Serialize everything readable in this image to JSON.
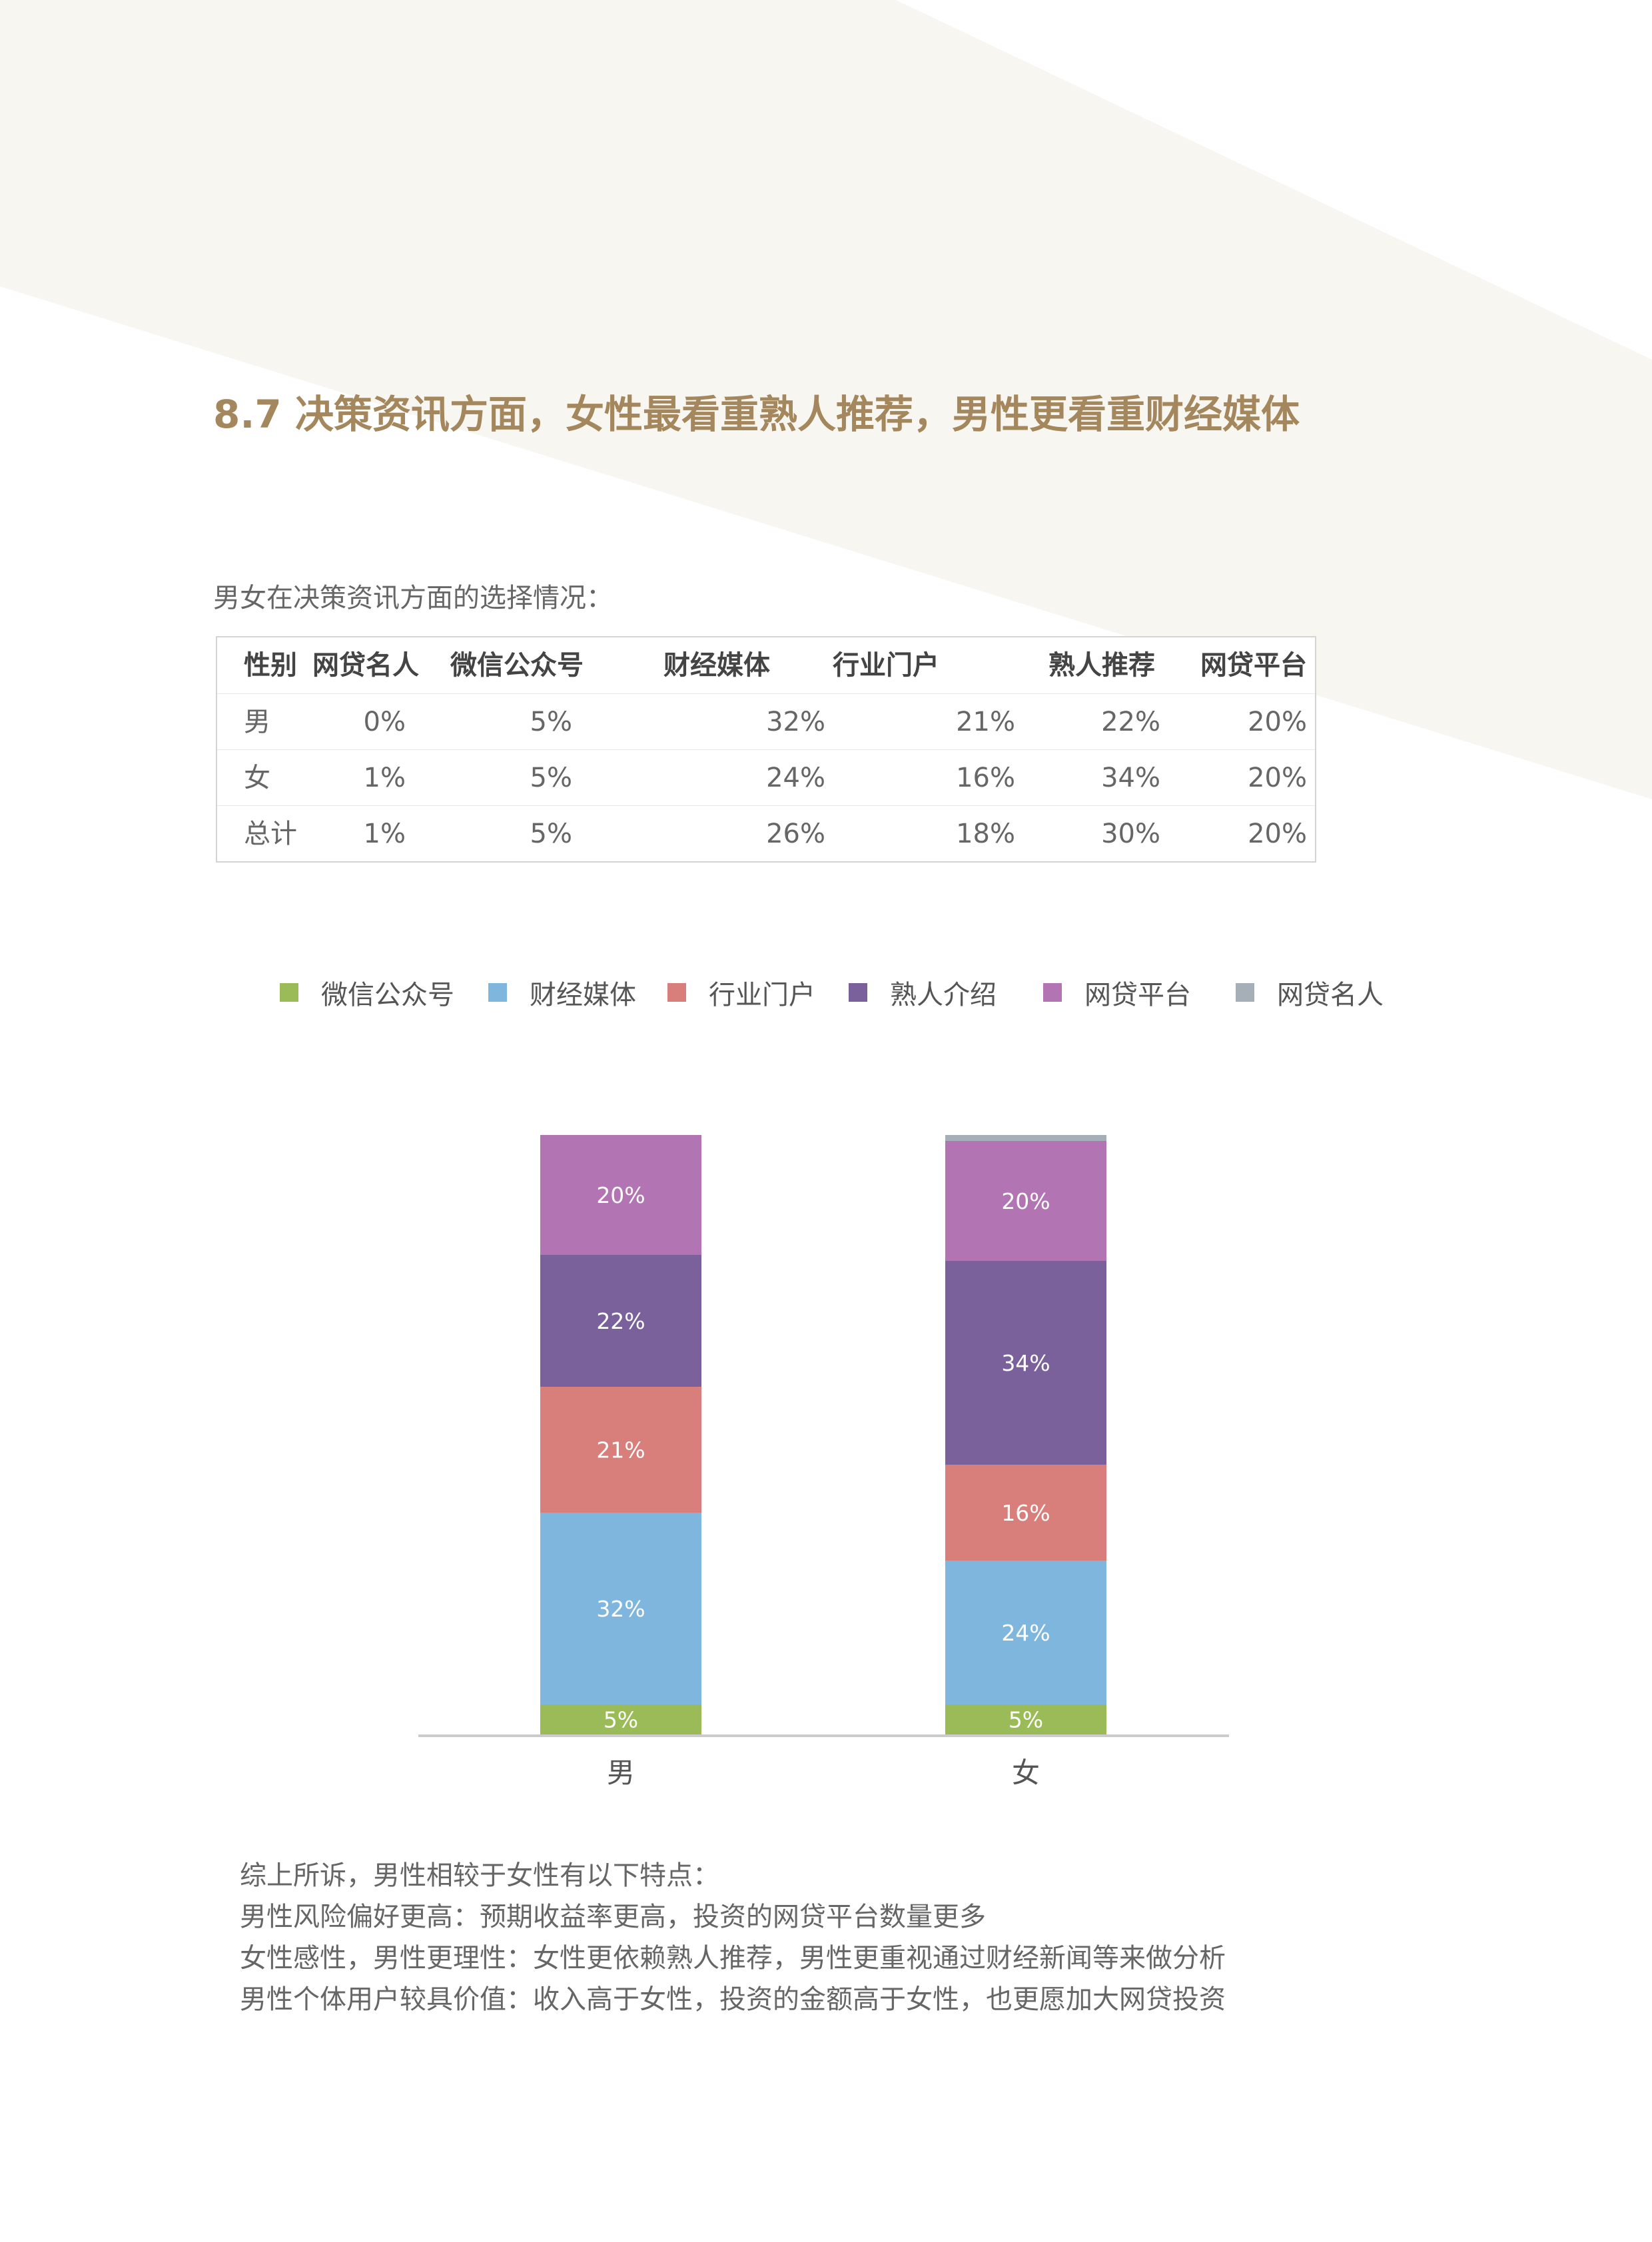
{
  "colors": {
    "title": "#a4875c",
    "background_shape": "#f8f6f1"
  },
  "section_title": "8.7 决策资讯方面，女性最看重熟人推荐，男性更看重财经媒体",
  "table": {
    "caption": "男女在决策资讯方面的选择情况：",
    "headers": [
      "性别",
      "网贷名人",
      "微信公众号",
      "财经媒体",
      "行业门户",
      "熟人推荐",
      "网贷平台"
    ],
    "rows": [
      [
        "男",
        "0%",
        "5%",
        "32%",
        "21%",
        "22%",
        "20%"
      ],
      [
        "女",
        "1%",
        "5%",
        "24%",
        "16%",
        "34%",
        "20%"
      ],
      [
        "总计",
        "1%",
        "5%",
        "26%",
        "18%",
        "30%",
        "20%"
      ]
    ]
  },
  "chart_data": {
    "type": "bar",
    "stacked": true,
    "categories": [
      "男",
      "女"
    ],
    "series": [
      {
        "name": "微信公众号",
        "values": [
          5,
          5
        ],
        "labels": [
          "5%",
          "5%"
        ],
        "color": "#9bbb59"
      },
      {
        "name": "财经媒体",
        "values": [
          32,
          24
        ],
        "labels": [
          "32%",
          "24%"
        ],
        "color": "#7fb6de"
      },
      {
        "name": "行业门户",
        "values": [
          21,
          16
        ],
        "labels": [
          "21%",
          "16%"
        ],
        "color": "#d87f7b"
      },
      {
        "name": "熟人介绍",
        "values": [
          22,
          34
        ],
        "labels": [
          "22%",
          "34%"
        ],
        "color": "#7b619b"
      },
      {
        "name": "网贷平台",
        "values": [
          20,
          20
        ],
        "labels": [
          "20%",
          "20%"
        ],
        "color": "#b274b2"
      },
      {
        "name": "网贷名人",
        "values": [
          0,
          1
        ],
        "labels": [
          "",
          ""
        ],
        "color": "#a6aeb8"
      }
    ],
    "legend_position": "top",
    "grid": false,
    "axis_color": "#cccccc"
  },
  "summary": [
    "综上所诉，男性相较于女性有以下特点：",
    "男性风险偏好更高：预期收益率更高，投资的网贷平台数量更多",
    "女性感性，男性更理性：女性更依赖熟人推荐，男性更重视通过财经新闻等来做分析",
    "男性个体用户较具价值：收入高于女性，投资的金额高于女性，也更愿加大网贷投资"
  ]
}
